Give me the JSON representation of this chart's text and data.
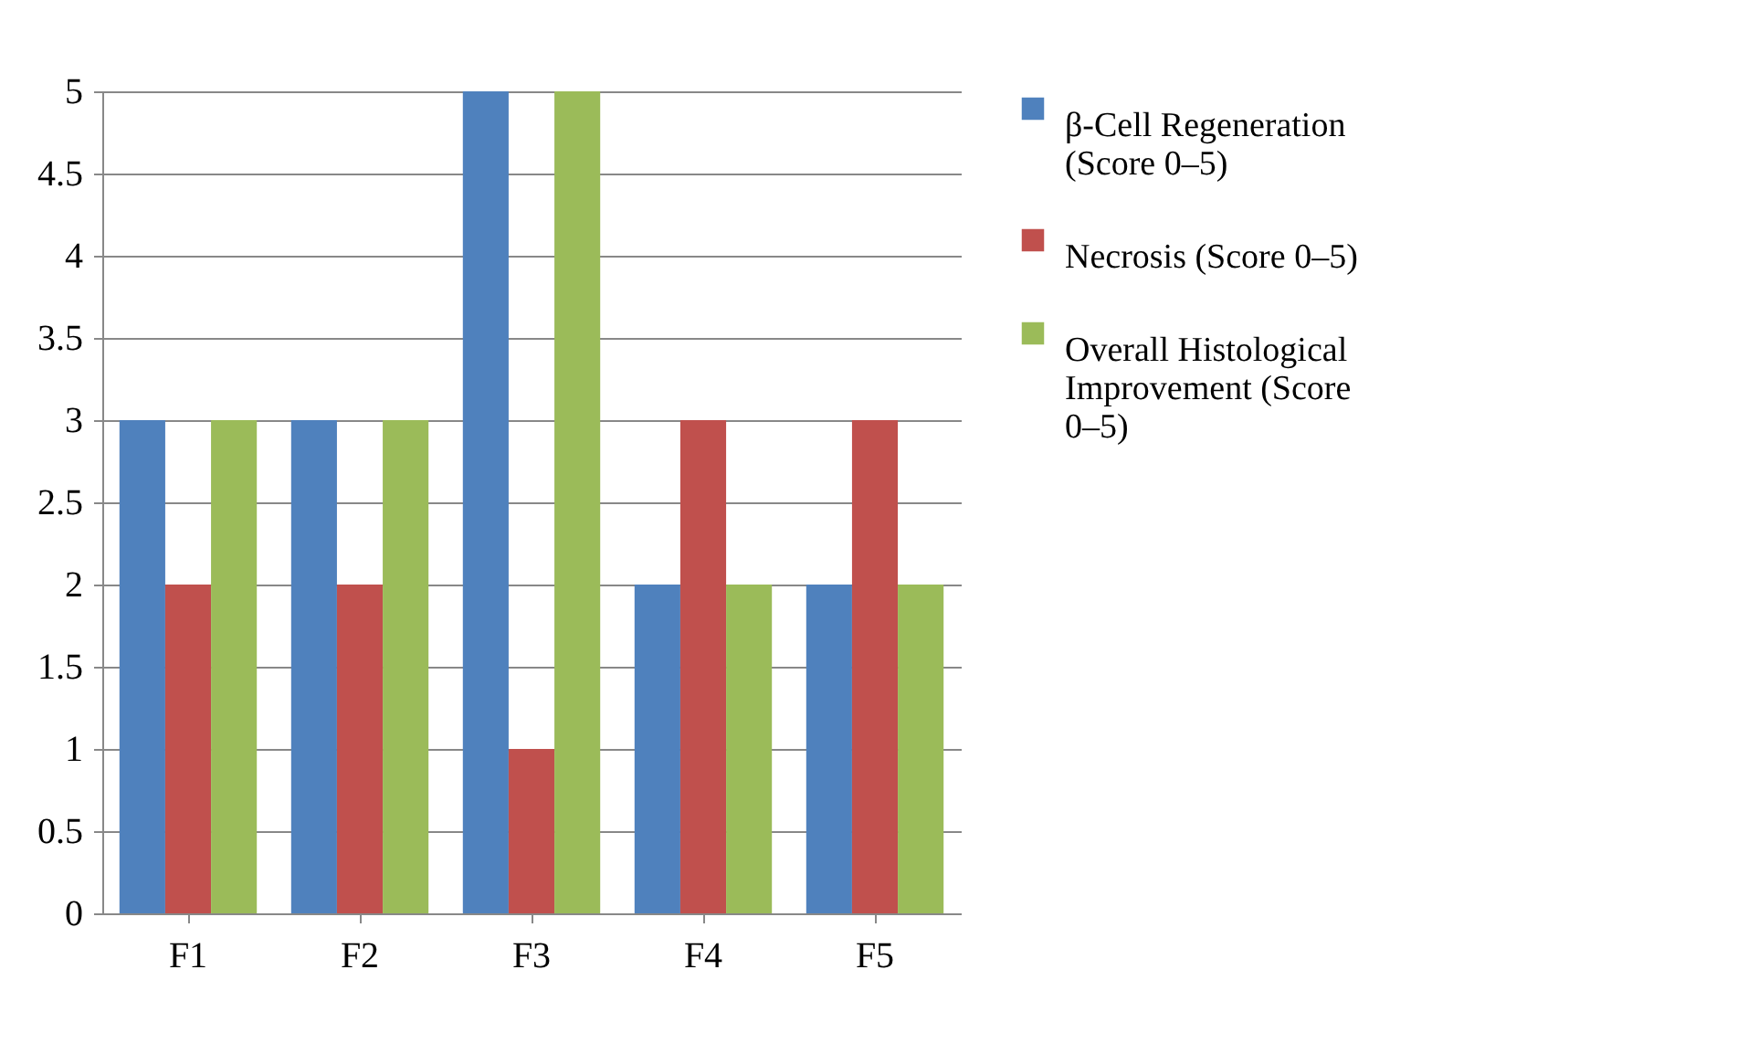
{
  "chart_data": {
    "type": "bar",
    "categories": [
      "F1",
      "F2",
      "F3",
      "F4",
      "F5"
    ],
    "series": [
      {
        "name": "β-Cell Regeneration (Score 0–5)",
        "color": "#4f81bd",
        "values": [
          3,
          3,
          5,
          2,
          2
        ]
      },
      {
        "name": "Necrosis (Score 0–5)",
        "color": "#c0504d",
        "values": [
          2,
          2,
          1,
          3,
          3
        ]
      },
      {
        "name": "Overall Histological Improvement (Score 0–5)",
        "color": "#9bbb59",
        "values": [
          3,
          3,
          5,
          2,
          2
        ]
      }
    ],
    "ylim": [
      0,
      5
    ],
    "yticks": [
      0,
      0.5,
      1,
      1.5,
      2,
      2.5,
      3,
      3.5,
      4,
      4.5,
      5
    ],
    "grid": "y",
    "legend": "right"
  }
}
